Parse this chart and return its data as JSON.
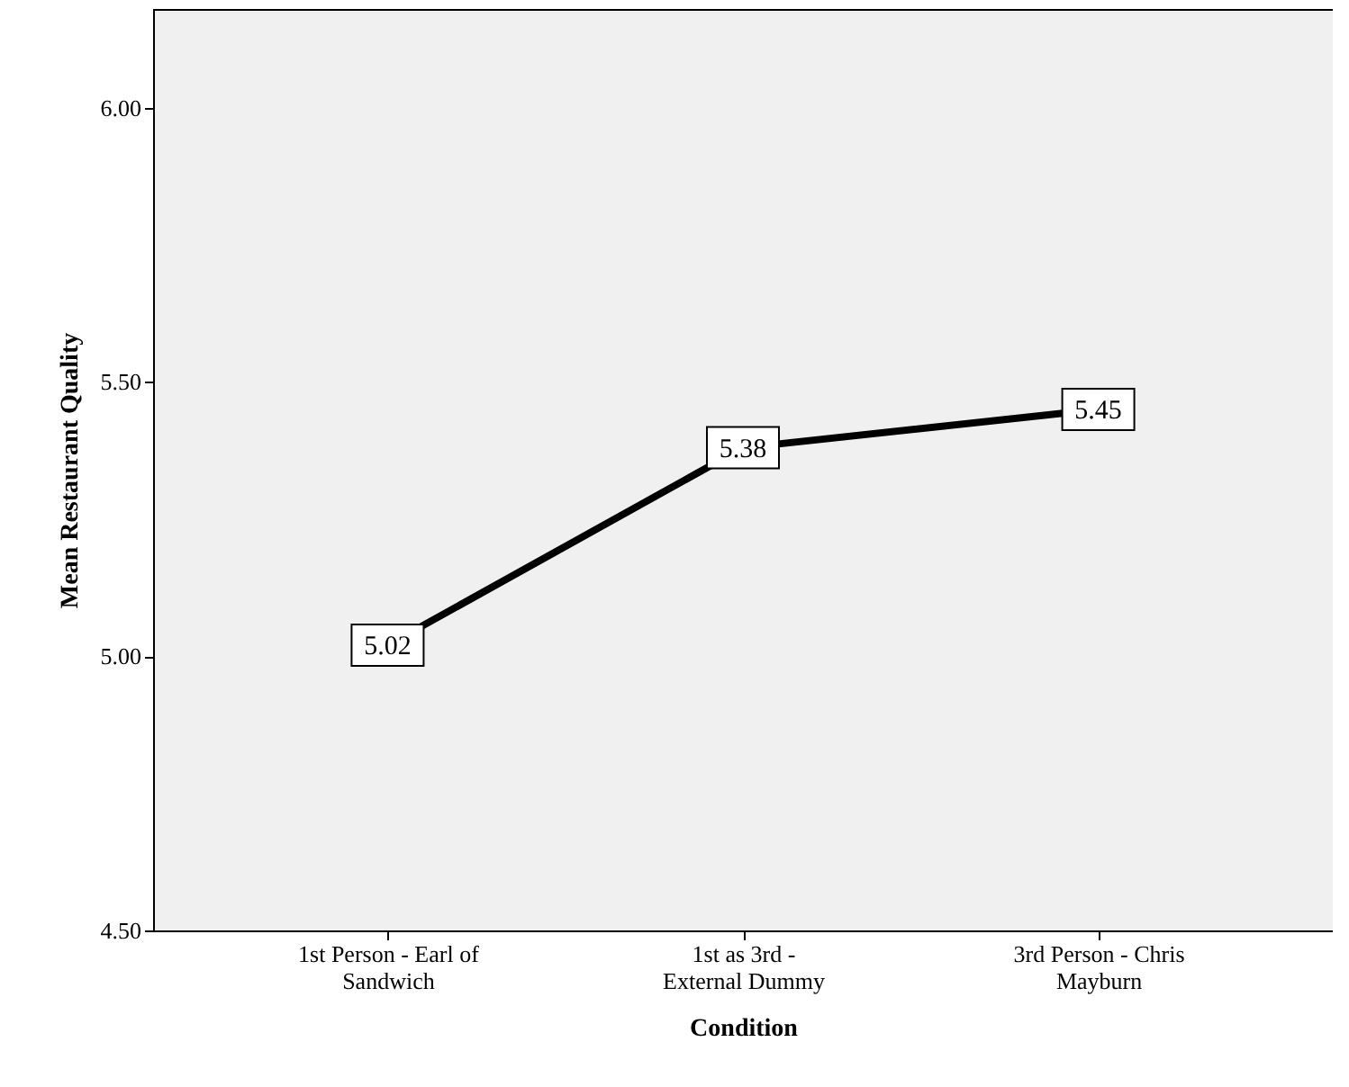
{
  "chart_data": {
    "type": "line",
    "xlabel": "Condition",
    "ylabel": "Mean Restaurant Quality",
    "categories": [
      "1st Person - Earl of Sandwich",
      "1st as 3rd - External Dummy",
      "3rd Person - Chris Mayburn"
    ],
    "series": [
      {
        "color": "#000000",
        "values": [
          5.02,
          5.38,
          5.45
        ]
      }
    ],
    "ylim": [
      4.5,
      6.18
    ],
    "yticks": [
      {
        "value": 4.5,
        "label": "4.50"
      },
      {
        "value": 5,
        "label": "5.00"
      },
      {
        "value": 5.5,
        "label": "5.50"
      },
      {
        "value": 6,
        "label": "6.00"
      }
    ],
    "data_labels": true,
    "grid": false,
    "marker": "square",
    "line_style": "solid"
  }
}
